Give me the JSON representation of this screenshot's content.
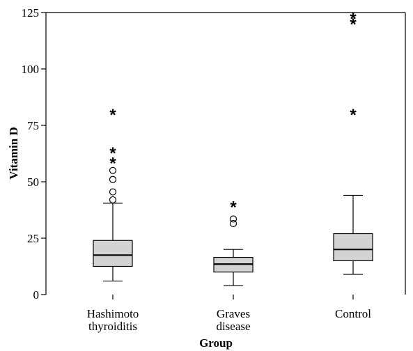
{
  "chart_data": {
    "type": "boxplot",
    "xlabel": "Group",
    "ylabel": "Vitamin D",
    "ylim": [
      0,
      125
    ],
    "yticks": [
      0,
      25,
      50,
      75,
      100,
      125
    ],
    "categories": [
      [
        "Hashimoto",
        "thyroiditis"
      ],
      [
        "Graves",
        "disease"
      ],
      [
        "Control"
      ]
    ],
    "boxes": [
      {
        "whisker_low": 6,
        "q1": 12.5,
        "median": 17.5,
        "q3": 24,
        "whisker_high": 40.5,
        "outliers_circle": [
          42,
          45.5,
          51,
          55
        ],
        "outliers_star": [
          58.5,
          63,
          80
        ]
      },
      {
        "whisker_low": 4,
        "q1": 10,
        "median": 13.5,
        "q3": 16.5,
        "whisker_high": 20,
        "outliers_circle": [
          31.5,
          33.5
        ],
        "outliers_star": [
          39
        ]
      },
      {
        "whisker_low": 9,
        "q1": 15,
        "median": 20,
        "q3": 27,
        "whisker_high": 44,
        "outliers_circle": [],
        "outliers_star": [
          80,
          120,
          122.5
        ]
      }
    ],
    "box_fill": "#d3d3d3",
    "grid": false,
    "legend": "none"
  }
}
